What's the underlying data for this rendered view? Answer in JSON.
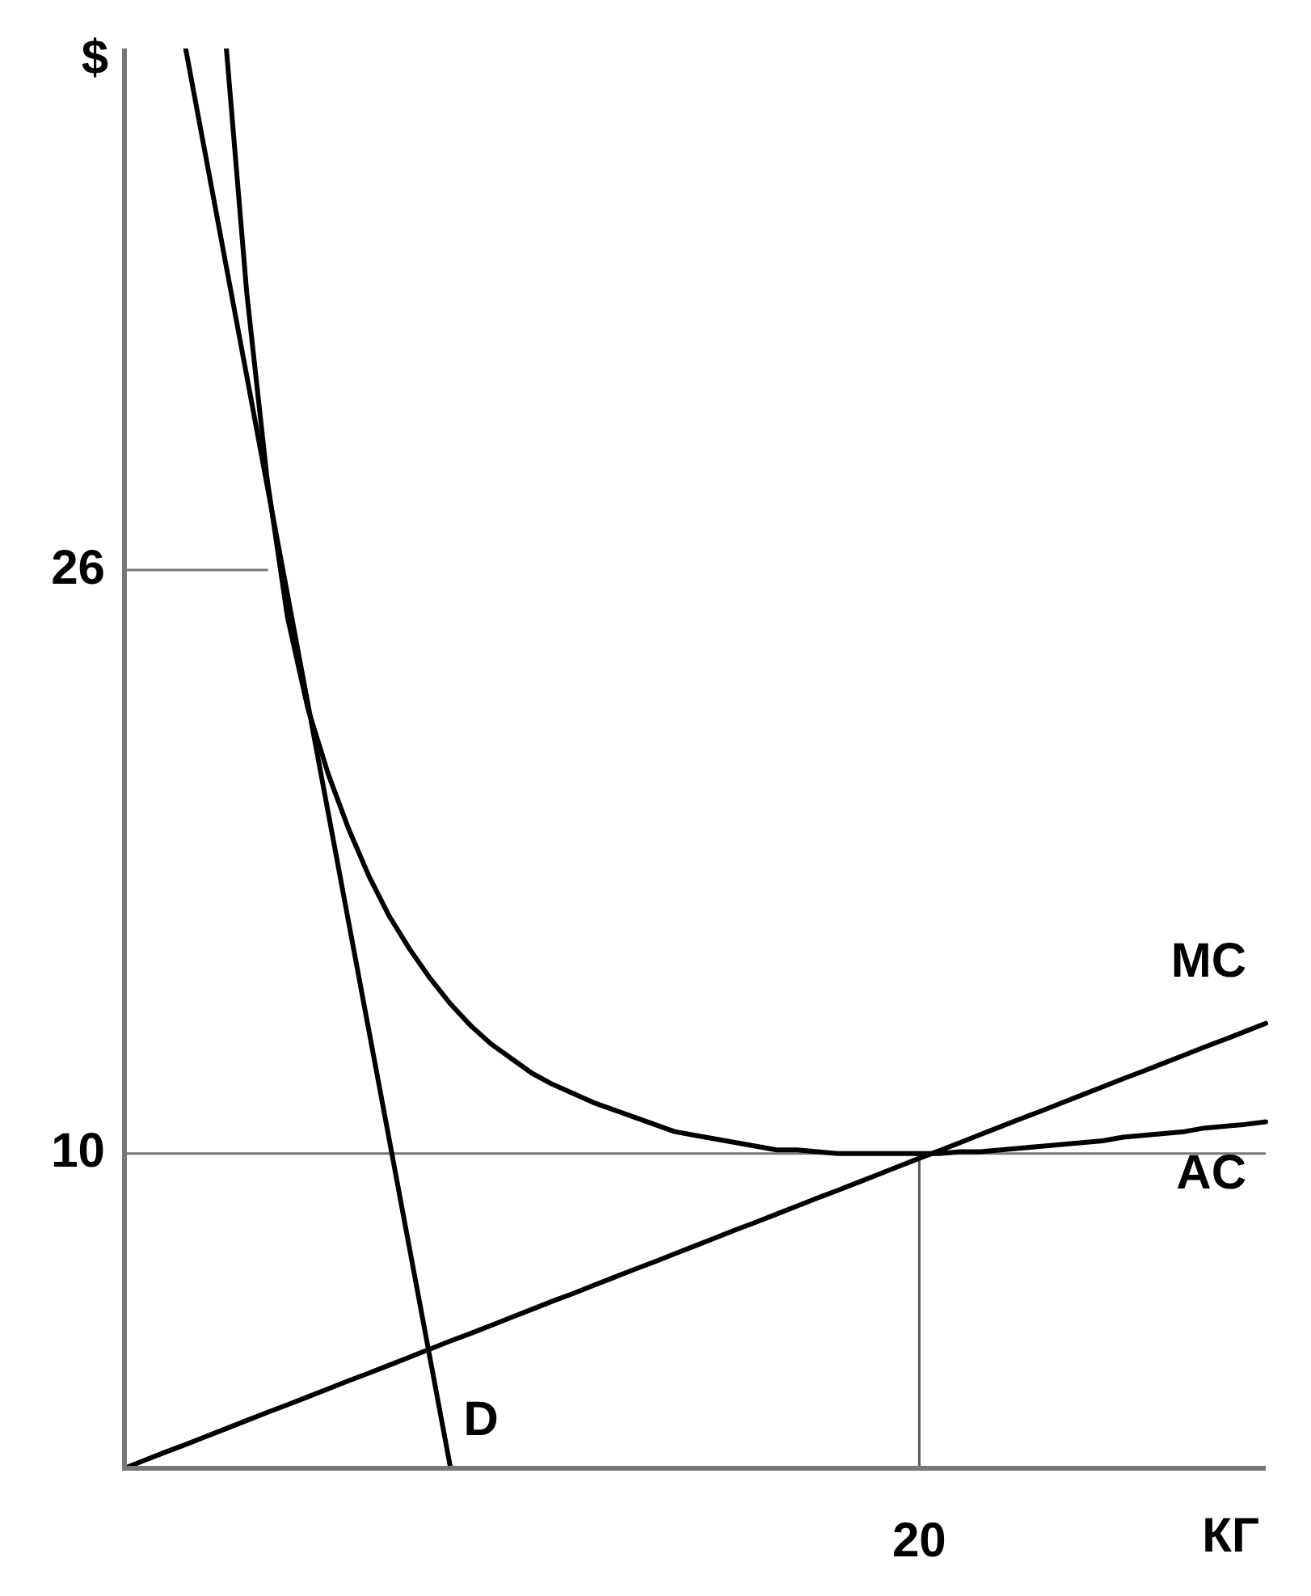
{
  "chart_data": {
    "type": "line",
    "xlabel": "КГ",
    "ylabel": "$",
    "categories": [
      null,
      null,
      null,
      null,
      null,
      null,
      null,
      null,
      null,
      null,
      null,
      null,
      null,
      null,
      null,
      null,
      null,
      null,
      null,
      null,
      null,
      null,
      null,
      null,
      null,
      null,
      null,
      null,
      null,
      null,
      null,
      null,
      null,
      null,
      null,
      null,
      null,
      null,
      null,
      "20",
      null,
      null,
      null,
      null,
      null,
      null,
      null,
      null,
      null,
      null,
      null,
      null,
      null,
      null,
      null,
      null,
      null
    ],
    "ylim": [
      1.37,
      40.3
    ],
    "yticks": [
      10,
      26
    ],
    "grid": false,
    "marker": "none",
    "line_style": "solid",
    "ref_lines": [
      {
        "axis": "y",
        "value": 10,
        "color": "#777777"
      },
      {
        "axis": "x",
        "value": "20",
        "color": "#555555"
      }
    ],
    "series": [
      {
        "name": "MC",
        "color": "#000000",
        "values": [
          1.37,
          1.59,
          1.81,
          2.02,
          2.24,
          2.46,
          2.68,
          2.9,
          3.11,
          3.33,
          3.55,
          3.77,
          3.98,
          4.2,
          4.42,
          4.64,
          4.86,
          5.07,
          5.29,
          5.51,
          5.73,
          5.95,
          6.16,
          6.38,
          6.6,
          6.82,
          7.03,
          7.25,
          7.47,
          7.69,
          7.91,
          8.12,
          8.34,
          8.56,
          8.78,
          8.99,
          9.21,
          9.43,
          9.65,
          9.87,
          10.08,
          10.3,
          10.52,
          10.74,
          10.96,
          11.17,
          11.39,
          11.61,
          11.83,
          12.05,
          12.26,
          12.48,
          12.7,
          12.92,
          13.13,
          13.35,
          13.57
        ]
      },
      {
        "name": "AC",
        "color": "#000000",
        "values": [
          null,
          null,
          null,
          null,
          null,
          40.3,
          33.6,
          28.5,
          24.7,
          22.2,
          20.4,
          18.9,
          17.6,
          16.5,
          15.6,
          14.8,
          14.1,
          13.5,
          13,
          12.6,
          12.2,
          11.9,
          11.65,
          11.4,
          11.2,
          11,
          10.8,
          10.6,
          10.5,
          10.4,
          10.3,
          10.2,
          10.1,
          10.1,
          10.05,
          10,
          10,
          10,
          10,
          10,
          10,
          10.05,
          10.05,
          10.1,
          10.15,
          10.2,
          10.25,
          10.3,
          10.35,
          10.45,
          10.5,
          10.55,
          10.6,
          10.7,
          10.75,
          10.8,
          10.87
        ]
      },
      {
        "name": "D",
        "color": "#000000",
        "values": [
          null,
          null,
          null,
          40.3,
          37.31,
          34.31,
          31.32,
          28.32,
          25.33,
          22.33,
          19.34,
          16.34,
          13.35,
          10.36,
          7.36,
          4.37,
          1.37,
          null,
          null,
          null,
          null,
          null,
          null,
          null,
          null,
          null,
          null,
          null,
          null,
          null,
          null,
          null,
          null,
          null,
          null,
          null,
          null,
          null,
          null,
          null,
          null,
          null,
          null,
          null,
          null,
          null,
          null,
          null,
          null,
          null,
          null,
          null,
          null,
          null,
          null,
          null,
          null
        ]
      },
      {
        "color": "#777777",
        "values": [
          26,
          26,
          26,
          26,
          26,
          26,
          26,
          26,
          null,
          null,
          null,
          null,
          null,
          null,
          null,
          null,
          null,
          null,
          null,
          null,
          null,
          null,
          null,
          null,
          null,
          null,
          null,
          null,
          null,
          null,
          null,
          null,
          null,
          null,
          null,
          null,
          null,
          null,
          null,
          null,
          null,
          null,
          null,
          null,
          null,
          null,
          null,
          null,
          null,
          null,
          null,
          null,
          null,
          null,
          null,
          null,
          null
        ]
      }
    ]
  }
}
